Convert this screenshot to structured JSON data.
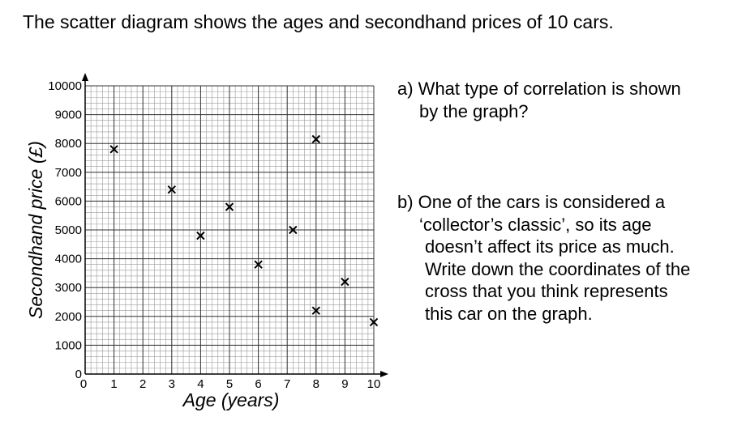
{
  "intro": "The scatter diagram shows the ages and secondhand prices of 10 cars.",
  "questions": {
    "a": [
      "a) What type of correlation is shown",
      "by the graph?"
    ],
    "b": [
      "b) One of the cars is considered a",
      "‘collector’s classic’, so its age",
      "doesn’t affect its price as much.",
      "Write down the coordinates of the",
      "cross that you think represents",
      "this car on the graph."
    ]
  },
  "chart_data": {
    "type": "scatter",
    "title": "",
    "xlabel": "Age (years)",
    "ylabel": "Secondhand price (£)",
    "xlim": [
      0,
      10
    ],
    "ylim": [
      0,
      10000
    ],
    "x_ticks": [
      0,
      1,
      2,
      3,
      4,
      5,
      6,
      7,
      8,
      9,
      10
    ],
    "y_ticks": [
      0,
      1000,
      2000,
      3000,
      4000,
      5000,
      6000,
      7000,
      8000,
      9000,
      10000
    ],
    "grid": true,
    "marker": "x",
    "points": [
      {
        "x": 1,
        "y": 7800
      },
      {
        "x": 3,
        "y": 6400
      },
      {
        "x": 4,
        "y": 4800
      },
      {
        "x": 5,
        "y": 5800
      },
      {
        "x": 6,
        "y": 3800
      },
      {
        "x": 7.2,
        "y": 5000
      },
      {
        "x": 8,
        "y": 8150
      },
      {
        "x": 8,
        "y": 2200
      },
      {
        "x": 9,
        "y": 3200
      },
      {
        "x": 10,
        "y": 1800
      }
    ]
  }
}
